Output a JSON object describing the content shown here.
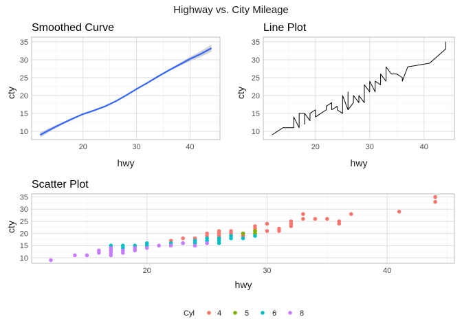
{
  "figure_title": "Highway vs. City Mileage",
  "legend": {
    "title": "Cyl",
    "entries": [
      {
        "label": "4",
        "color": "#F8766D"
      },
      {
        "label": "5",
        "color": "#7CAE00"
      },
      {
        "label": "6",
        "color": "#00BFC4"
      },
      {
        "label": "8",
        "color": "#C77CFF"
      }
    ]
  },
  "chart_data": [
    {
      "type": "line",
      "title": "Smoothed Curve",
      "xlabel": "hwy",
      "ylabel": "cty",
      "xlim": [
        10.4,
        45.6
      ],
      "ylim": [
        7.7,
        36.3
      ],
      "xticks": [
        20,
        30,
        40
      ],
      "yticks": [
        10,
        15,
        20,
        25,
        30,
        35
      ],
      "grid": true,
      "line_color": "#3366FF",
      "band_color": "#bdbdbd",
      "series": [
        {
          "x": [
            12,
            14,
            16,
            18,
            20,
            22,
            24,
            26,
            28,
            30,
            32,
            34,
            36,
            38,
            40,
            42,
            44
          ],
          "y": [
            9.0,
            10.6,
            12.1,
            13.5,
            14.8,
            15.8,
            16.9,
            18.3,
            20.0,
            21.8,
            23.5,
            25.3,
            27.0,
            28.6,
            30.2,
            31.6,
            33.2
          ],
          "lower": [
            8.3,
            10.1,
            11.8,
            13.2,
            14.6,
            15.6,
            16.7,
            18.1,
            19.8,
            21.6,
            23.3,
            25.0,
            26.7,
            28.2,
            29.6,
            30.8,
            32.2
          ],
          "upper": [
            9.7,
            11.1,
            12.4,
            13.8,
            15.0,
            16.0,
            17.1,
            18.5,
            20.2,
            22.0,
            23.7,
            25.6,
            27.3,
            29.0,
            30.8,
            32.4,
            34.2
          ]
        }
      ]
    },
    {
      "type": "line",
      "title": "Line Plot",
      "xlabel": "hwy",
      "ylabel": "cty",
      "xlim": [
        10.4,
        45.6
      ],
      "ylim": [
        7.7,
        36.3
      ],
      "xticks": [
        20,
        30,
        40
      ],
      "yticks": [
        10,
        15,
        20,
        25,
        30,
        35
      ],
      "grid": true,
      "line_color": "#000000",
      "series": [
        {
          "x": [
            12,
            14,
            14,
            15,
            15,
            16,
            16,
            17,
            17,
            17,
            18,
            18,
            18,
            19,
            19,
            19,
            20,
            20,
            21,
            22,
            22,
            23,
            23,
            24,
            24,
            25,
            25,
            26,
            26,
            26,
            27,
            27,
            28,
            28,
            29,
            29,
            30,
            30,
            31,
            31,
            32,
            32,
            33,
            33,
            34,
            35,
            36,
            36,
            37,
            41,
            44,
            44
          ],
          "y": [
            9,
            11,
            11,
            11,
            11,
            11,
            14,
            11,
            15,
            15,
            15,
            12,
            15,
            13,
            15,
            15,
            16,
            14,
            15,
            16,
            17,
            18,
            16,
            17,
            16,
            15,
            20,
            16,
            21,
            16,
            18,
            20,
            18,
            20,
            18,
            23,
            21,
            24,
            21,
            24,
            23,
            26,
            24,
            28,
            26,
            26,
            25,
            24,
            28,
            29,
            33,
            35
          ]
        }
      ]
    },
    {
      "type": "scatter",
      "title": "Scatter Plot",
      "xlabel": "hwy",
      "ylabel": "cty",
      "xlim": [
        10.4,
        45.6
      ],
      "ylim": [
        7.7,
        36.3
      ],
      "xticks": [
        20,
        30,
        40
      ],
      "yticks": [
        10,
        15,
        20,
        25,
        30,
        35
      ],
      "grid": true,
      "point_color_by": "Cyl",
      "series": [
        {
          "name": "4",
          "color": "#F8766D",
          "x": [
            22,
            23,
            24,
            24,
            25,
            25,
            26,
            26,
            26,
            26,
            27,
            27,
            27,
            28,
            28,
            29,
            29,
            29,
            29,
            30,
            30,
            31,
            31,
            32,
            32,
            32,
            33,
            33,
            34,
            35,
            36,
            36,
            37,
            41,
            44,
            44
          ],
          "y": [
            17,
            18,
            18,
            17,
            19,
            20,
            19,
            20,
            21,
            18,
            19,
            20,
            21,
            20,
            19,
            21,
            22,
            23,
            20,
            24,
            21,
            21,
            22,
            23,
            24,
            25,
            26,
            28,
            26,
            26,
            24,
            25,
            28,
            29,
            33,
            35
          ]
        },
        {
          "name": "5",
          "color": "#7CAE00",
          "x": [
            28,
            29,
            29
          ],
          "y": [
            20,
            20,
            21
          ]
        },
        {
          "name": "6",
          "color": "#00BFC4",
          "x": [
            17,
            17,
            18,
            18,
            19,
            19,
            20,
            20,
            22,
            23,
            24,
            24,
            25,
            25,
            26,
            26,
            26,
            27,
            27,
            28,
            29
          ],
          "y": [
            15,
            14,
            15,
            14,
            15,
            14,
            16,
            15,
            16,
            16,
            16,
            17,
            17,
            18,
            16,
            17,
            18,
            18,
            19,
            18,
            19
          ]
        },
        {
          "name": "8",
          "color": "#C77CFF",
          "x": [
            12,
            14,
            15,
            16,
            16,
            17,
            17,
            17,
            17,
            18,
            18,
            19,
            19,
            20,
            21,
            22,
            23,
            24,
            25
          ],
          "y": [
            9,
            11,
            11,
            12,
            13,
            11,
            12,
            13,
            14,
            12,
            13,
            13,
            14,
            14,
            15,
            15,
            16,
            15,
            16
          ]
        }
      ]
    }
  ]
}
